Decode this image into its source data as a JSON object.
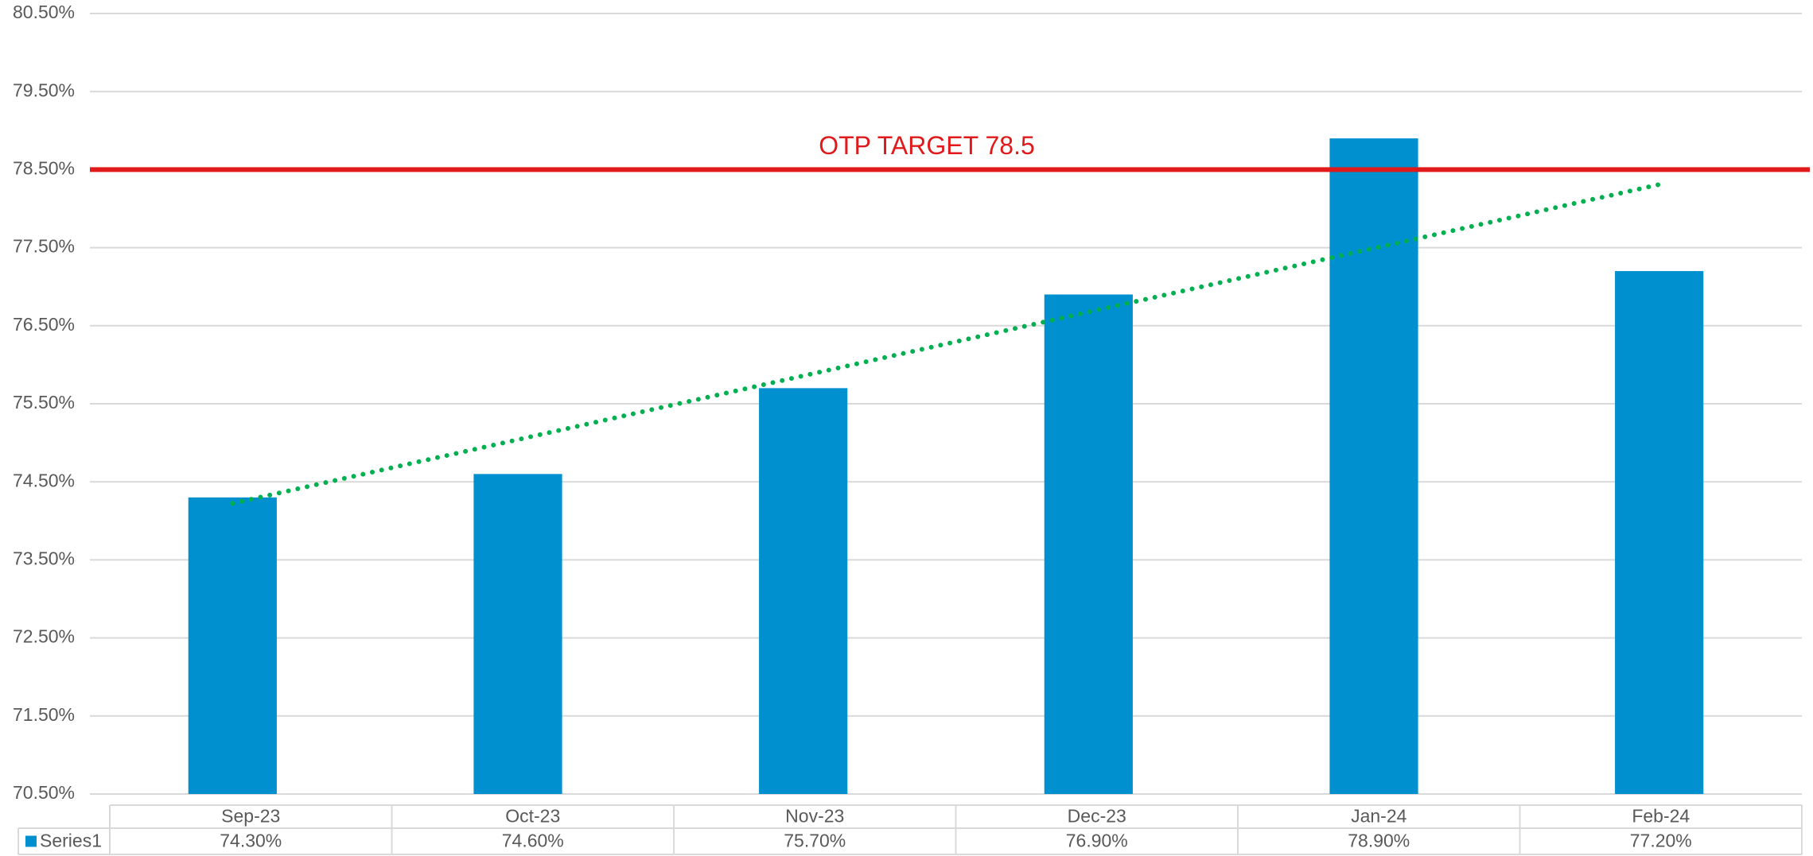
{
  "chart_data": {
    "type": "bar",
    "categories": [
      "Sep-23",
      "Oct-23",
      "Nov-23",
      "Dec-23",
      "Jan-24",
      "Feb-24"
    ],
    "series": [
      {
        "name": "Series1",
        "color": "#0090d0",
        "values": [
          74.3,
          74.6,
          75.7,
          76.9,
          78.9,
          77.2
        ],
        "value_labels": [
          "74.30%",
          "74.60%",
          "75.70%",
          "76.90%",
          "78.90%",
          "77.20%"
        ]
      }
    ],
    "ylim": [
      70.5,
      80.5
    ],
    "yticks": [
      {
        "value": 70.5,
        "label": "70.50%"
      },
      {
        "value": 71.5,
        "label": "71.50%"
      },
      {
        "value": 72.5,
        "label": "72.50%"
      },
      {
        "value": 73.5,
        "label": "73.50%"
      },
      {
        "value": 74.5,
        "label": "74.50%"
      },
      {
        "value": 75.5,
        "label": "75.50%"
      },
      {
        "value": 76.5,
        "label": "76.50%"
      },
      {
        "value": 77.5,
        "label": "77.50%"
      },
      {
        "value": 78.5,
        "label": "78.50%"
      },
      {
        "value": 79.5,
        "label": "79.50%"
      },
      {
        "value": 80.5,
        "label": "80.50%"
      }
    ],
    "grid": true,
    "target": {
      "value": 78.5,
      "label": "OTP TARGET 78.5",
      "color": "#e0191b"
    },
    "trendline": {
      "type": "linear",
      "color": "#00b050"
    },
    "data_table": true
  }
}
